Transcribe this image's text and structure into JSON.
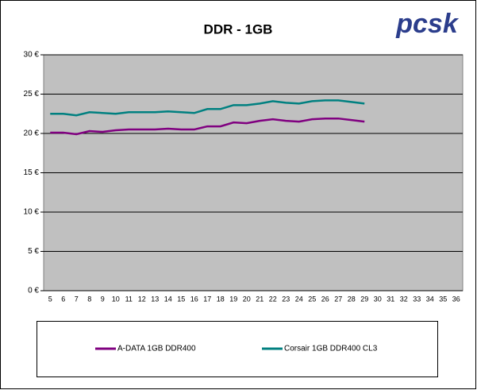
{
  "logo": "pcsk",
  "chart_data": {
    "type": "line",
    "title": "DDR - 1GB",
    "categories": [
      "5",
      "6",
      "7",
      "8",
      "9",
      "10",
      "11",
      "12",
      "13",
      "14",
      "15",
      "16",
      "17",
      "18",
      "19",
      "20",
      "21",
      "22",
      "23",
      "24",
      "25",
      "26",
      "27",
      "28",
      "29",
      "30",
      "31",
      "32",
      "33",
      "34",
      "35",
      "36"
    ],
    "series": [
      {
        "name": "A-DATA 1GB DDR400",
        "color": "#800080",
        "values": [
          20.1,
          20.1,
          19.9,
          20.3,
          20.2,
          20.4,
          20.5,
          20.5,
          20.5,
          20.6,
          20.5,
          20.5,
          20.9,
          20.9,
          21.4,
          21.3,
          21.6,
          21.8,
          21.6,
          21.5,
          21.8,
          21.9,
          21.9,
          21.7,
          21.5,
          null,
          null,
          null,
          null,
          null,
          null,
          null
        ]
      },
      {
        "name": "Corsair 1GB DDR400 CL3",
        "color": "#008080",
        "values": [
          22.5,
          22.5,
          22.3,
          22.7,
          22.6,
          22.5,
          22.7,
          22.7,
          22.7,
          22.8,
          22.7,
          22.6,
          23.1,
          23.1,
          23.6,
          23.6,
          23.8,
          24.1,
          23.9,
          23.8,
          24.1,
          24.2,
          24.2,
          24.0,
          23.8,
          null,
          null,
          null,
          null,
          null,
          null,
          null
        ]
      }
    ],
    "ylim": [
      0,
      30
    ],
    "yticks": [
      {
        "value": 0,
        "label": "0 €"
      },
      {
        "value": 5,
        "label": "5 €"
      },
      {
        "value": 10,
        "label": "10 €"
      },
      {
        "value": 15,
        "label": "15 €"
      },
      {
        "value": 20,
        "label": "20 €"
      },
      {
        "value": 25,
        "label": "25 €"
      },
      {
        "value": 30,
        "label": "30 €"
      }
    ],
    "grid": true,
    "legend": "bottom"
  }
}
